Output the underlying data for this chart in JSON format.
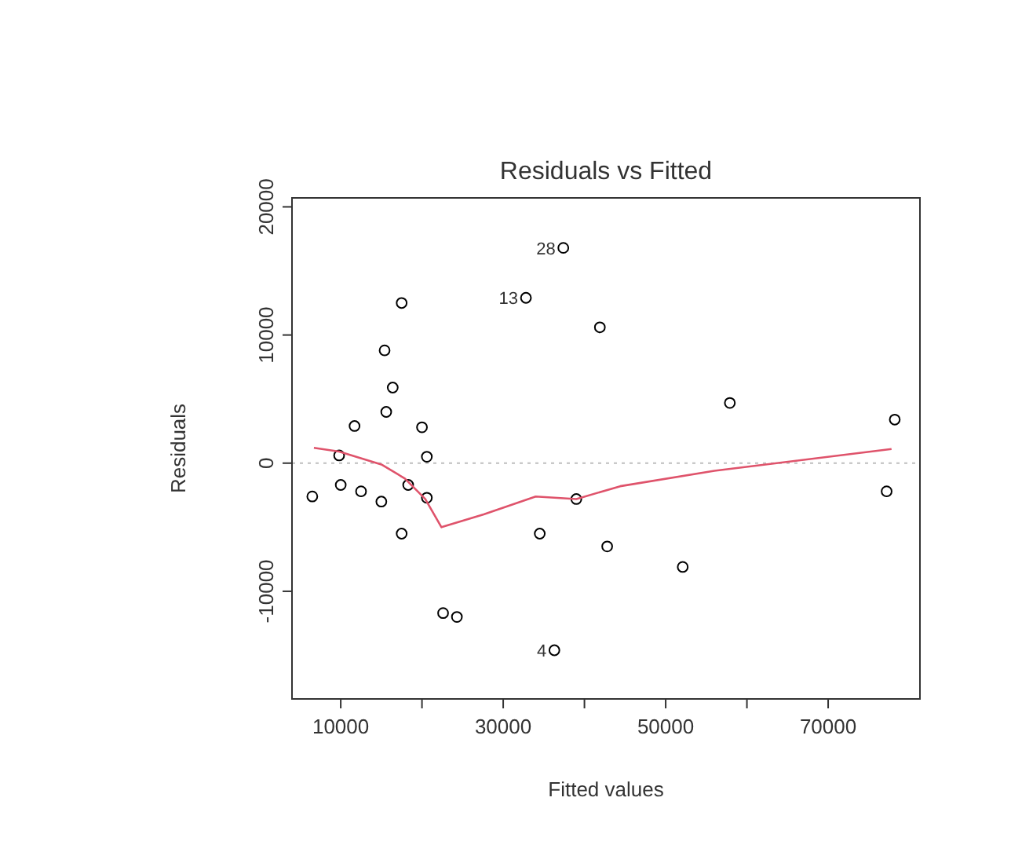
{
  "chart_data": {
    "type": "scatter",
    "title": "Residuals vs Fitted",
    "xlabel": "Fitted values",
    "ylabel": "Residuals",
    "xlim": [
      4000,
      81300
    ],
    "ylim": [
      -18400,
      20700
    ],
    "xticks": [
      10000,
      {
        "value": 20000,
        "label": null
      },
      30000,
      {
        "value": 40000,
        "label": null
      },
      50000,
      {
        "value": 60000,
        "label": null
      },
      70000
    ],
    "yticks": [
      -10000,
      0,
      10000,
      20000
    ],
    "marker": "circle",
    "grid": false,
    "ref_lines": [
      {
        "axis": "y",
        "value": 0,
        "color": "#bebebe",
        "line_style": "dotted"
      }
    ],
    "annotations": [
      {
        "text": "28",
        "x": 37400,
        "y": 16800
      },
      {
        "text": "13",
        "x": 32800,
        "y": 12900
      },
      {
        "text": "4",
        "x": 36300,
        "y": -14600
      }
    ],
    "series": [
      {
        "color": "#000000",
        "x": [
          6500,
          9800,
          10000,
          11700,
          12500,
          15000,
          15400,
          16400,
          15600,
          17500,
          17500,
          18300,
          20000,
          20600,
          20600,
          22600,
          24300,
          32800,
          34500,
          36300,
          37400,
          41900,
          39000,
          42800,
          52100,
          57900,
          78200,
          77200
        ],
        "values": [
          -2600,
          600,
          -1700,
          2900,
          -2200,
          -3000,
          8800,
          5900,
          4000,
          12500,
          -5500,
          -1700,
          2800,
          500,
          -2700,
          -11700,
          -12000,
          12900,
          -5500,
          -14600,
          16800,
          10600,
          -2800,
          -6500,
          -8100,
          4700,
          3400,
          -2200
        ]
      },
      {
        "type": "line",
        "color": "#df536b",
        "marker": "none",
        "x": [
          6700,
          9800,
          15000,
          17900,
          20400,
          22400,
          27600,
          34000,
          39000,
          44400,
          56000,
          77800
        ],
        "values": [
          1200,
          900,
          -100,
          -1200,
          -2800,
          -5000,
          -4000,
          -2600,
          -2800,
          -1800,
          -600,
          1100
        ]
      }
    ]
  }
}
